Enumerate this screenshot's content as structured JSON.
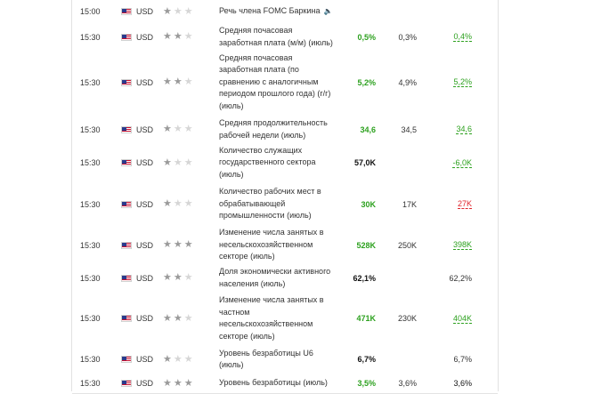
{
  "rows": [
    {
      "time": "15:00",
      "currency": "USD",
      "importance": 1,
      "event": "Речь члена FOMC Баркина",
      "speech": true,
      "actual": "",
      "forecast": "",
      "previous": "",
      "actual_color": "",
      "previous_color": "",
      "previous_dashed": false
    },
    {
      "time": "15:30",
      "currency": "USD",
      "importance": 2,
      "event": "Средняя почасовая заработная плата (м/м) (июль)",
      "speech": false,
      "actual": "0,5%",
      "forecast": "0,3%",
      "previous": "0,4%",
      "actual_color": "#2da11f",
      "previous_color": "#2da11f",
      "previous_dashed": true
    },
    {
      "time": "15:30",
      "currency": "USD",
      "importance": 2,
      "event": "Средняя почасовая заработная плата (по сравнению с аналогичным периодом прошлого года) (г/г) (июль)",
      "speech": false,
      "actual": "5,2%",
      "forecast": "4,9%",
      "previous": "5,2%",
      "actual_color": "#2da11f",
      "previous_color": "#2da11f",
      "previous_dashed": true
    },
    {
      "time": "15:30",
      "currency": "USD",
      "importance": 1,
      "event": "Средняя продолжительность рабочей недели (июль)",
      "speech": false,
      "actual": "34,6",
      "forecast": "34,5",
      "previous": "34,6",
      "actual_color": "#2da11f",
      "previous_color": "#2da11f",
      "previous_dashed": true
    },
    {
      "time": "15:30",
      "currency": "USD",
      "importance": 1,
      "event": "Количество служащих государственного сектора (июль)",
      "speech": false,
      "actual": "57,0K",
      "forecast": "",
      "previous": "-6,0K",
      "actual_color": "#111111",
      "previous_color": "#2da11f",
      "previous_dashed": true
    },
    {
      "time": "15:30",
      "currency": "USD",
      "importance": 1,
      "event": "Количество рабочих мест в обрабатывающей промышленности (июль)",
      "speech": false,
      "actual": "30K",
      "forecast": "17K",
      "previous": "27K",
      "actual_color": "#2da11f",
      "previous_color": "#e0262d",
      "previous_dashed": true
    },
    {
      "time": "15:30",
      "currency": "USD",
      "importance": 3,
      "event": "Изменение числа занятых в несельскохозяйственном секторе (июль)",
      "speech": false,
      "actual": "528K",
      "forecast": "250K",
      "previous": "398K",
      "actual_color": "#2da11f",
      "previous_color": "#2da11f",
      "previous_dashed": true
    },
    {
      "time": "15:30",
      "currency": "USD",
      "importance": 2,
      "event": "Доля экономически активного населения (июль)",
      "speech": false,
      "actual": "62,1%",
      "forecast": "",
      "previous": "62,2%",
      "actual_color": "#111111",
      "previous_color": "#333333",
      "previous_dashed": false
    },
    {
      "time": "15:30",
      "currency": "USD",
      "importance": 2,
      "event": "Изменение числа занятых в частном несельскохозяйственном секторе (июль)",
      "speech": false,
      "actual": "471K",
      "forecast": "230K",
      "previous": "404K",
      "actual_color": "#2da11f",
      "previous_color": "#2da11f",
      "previous_dashed": true
    },
    {
      "time": "15:30",
      "currency": "USD",
      "importance": 1,
      "event": "Уровень безработицы U6 (июль)",
      "speech": false,
      "actual": "6,7%",
      "forecast": "",
      "previous": "6,7%",
      "actual_color": "#111111",
      "previous_color": "#333333",
      "previous_dashed": false
    },
    {
      "time": "15:30",
      "currency": "USD",
      "importance": 3,
      "event": "Уровень безработицы (июль)",
      "speech": false,
      "actual": "3,5%",
      "forecast": "3,6%",
      "previous": "3,6%",
      "actual_color": "#2da11f",
      "previous_color": "#111111",
      "previous_dashed": false
    }
  ]
}
